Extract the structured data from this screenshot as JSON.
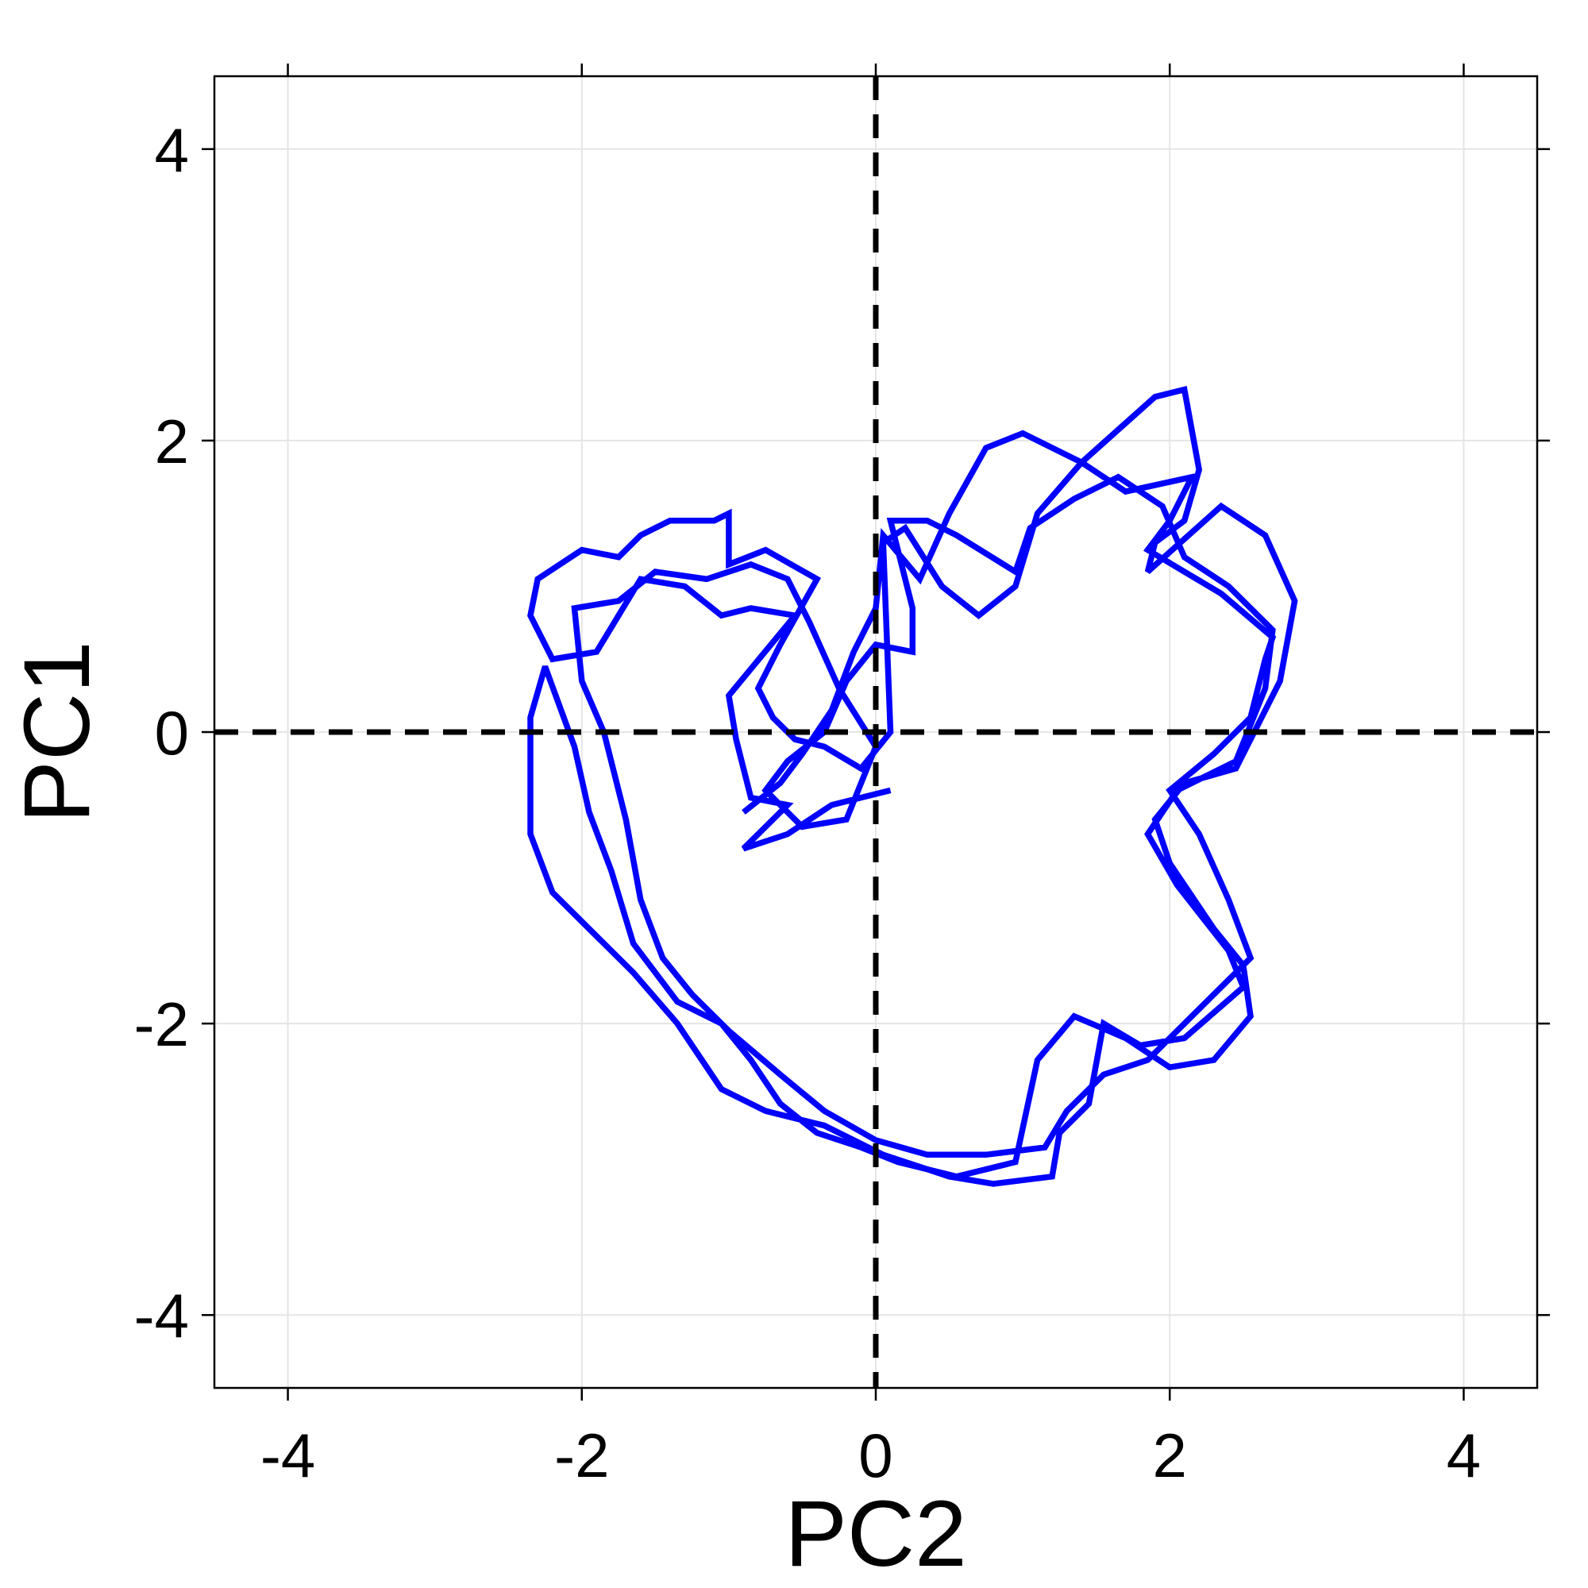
{
  "chart_data": {
    "type": "line",
    "title": "",
    "xlabel": "PC2",
    "ylabel": "PC1",
    "xlim": [
      -4.5,
      4.5
    ],
    "ylim": [
      -4.5,
      4.5
    ],
    "x_ticks": [
      -4,
      -2,
      0,
      2,
      4
    ],
    "y_ticks": [
      -4,
      -2,
      0,
      2,
      4
    ],
    "x_tick_labels": [
      "-4",
      "-2",
      "0",
      "2",
      "4"
    ],
    "y_tick_labels": [
      "-4",
      "-2",
      "0",
      "2",
      "4"
    ],
    "grid": true,
    "reference_lines": [
      {
        "orientation": "horizontal",
        "value": 0,
        "style": "dashed",
        "color": "#000000"
      },
      {
        "orientation": "vertical",
        "value": 0,
        "style": "dashed",
        "color": "#000000"
      }
    ],
    "colors": {
      "series": "#0000ff",
      "grid": "#e5e5e5",
      "axis": "#000000"
    },
    "series": [
      {
        "color": "#0000ff",
        "points": [
          [
            0.1,
            -0.4
          ],
          [
            -0.3,
            -0.5
          ],
          [
            -0.6,
            -0.7
          ],
          [
            -0.9,
            -0.8
          ],
          [
            -0.6,
            -0.5
          ],
          [
            -0.85,
            -0.45
          ],
          [
            -0.95,
            -0.05
          ],
          [
            -1.0,
            0.25
          ],
          [
            -0.55,
            0.8
          ],
          [
            -0.85,
            0.85
          ],
          [
            -1.05,
            0.8
          ],
          [
            -1.3,
            1.0
          ],
          [
            -1.6,
            1.05
          ],
          [
            -1.9,
            0.55
          ],
          [
            -2.2,
            0.5
          ],
          [
            -2.35,
            0.8
          ],
          [
            -2.3,
            1.05
          ],
          [
            -2.0,
            1.25
          ],
          [
            -1.75,
            1.2
          ],
          [
            -1.6,
            1.35
          ],
          [
            -1.4,
            1.45
          ],
          [
            -1.1,
            1.45
          ],
          [
            -1.0,
            1.5
          ],
          [
            -1.0,
            1.15
          ],
          [
            -0.75,
            1.25
          ],
          [
            -0.4,
            1.05
          ],
          [
            -0.65,
            0.6
          ],
          [
            -0.8,
            0.3
          ],
          [
            -0.7,
            0.1
          ],
          [
            -0.55,
            -0.05
          ],
          [
            -0.35,
            -0.1
          ],
          [
            -0.1,
            -0.25
          ],
          [
            0.1,
            0.0
          ],
          [
            0.05,
            1.3
          ],
          [
            0.2,
            1.4
          ],
          [
            0.45,
            1.0
          ],
          [
            0.7,
            0.8
          ],
          [
            0.95,
            1.0
          ],
          [
            1.1,
            1.5
          ],
          [
            1.4,
            1.85
          ],
          [
            1.9,
            2.3
          ],
          [
            2.1,
            2.35
          ],
          [
            2.2,
            1.8
          ],
          [
            2.1,
            1.45
          ],
          [
            1.9,
            1.3
          ],
          [
            1.85,
            1.1
          ],
          [
            2.35,
            1.55
          ],
          [
            2.65,
            1.35
          ],
          [
            2.85,
            0.9
          ],
          [
            2.75,
            0.35
          ],
          [
            2.6,
            0.05
          ],
          [
            2.45,
            -0.25
          ],
          [
            2.1,
            -0.35
          ],
          [
            1.9,
            -0.6
          ],
          [
            2.0,
            -0.9
          ],
          [
            2.3,
            -1.35
          ],
          [
            2.5,
            -1.6
          ],
          [
            2.55,
            -1.95
          ],
          [
            2.3,
            -2.25
          ],
          [
            2.0,
            -2.3
          ],
          [
            1.7,
            -2.1
          ],
          [
            1.35,
            -1.95
          ],
          [
            1.1,
            -2.25
          ],
          [
            0.95,
            -2.95
          ],
          [
            0.55,
            -3.05
          ],
          [
            0.15,
            -2.95
          ],
          [
            -0.1,
            -2.85
          ],
          [
            -0.4,
            -2.75
          ],
          [
            -0.65,
            -2.55
          ],
          [
            -0.85,
            -2.25
          ],
          [
            -1.05,
            -2.0
          ],
          [
            -1.35,
            -1.85
          ],
          [
            -1.65,
            -1.45
          ],
          [
            -1.8,
            -0.95
          ],
          [
            -1.95,
            -0.55
          ],
          [
            -2.05,
            -0.1
          ],
          [
            -2.25,
            0.45
          ],
          [
            -2.35,
            0.1
          ],
          [
            -2.35,
            -0.7
          ],
          [
            -2.2,
            -1.1
          ],
          [
            -1.95,
            -1.35
          ],
          [
            -1.65,
            -1.65
          ],
          [
            -1.35,
            -2.0
          ],
          [
            -1.05,
            -2.45
          ],
          [
            -0.75,
            -2.6
          ],
          [
            -0.35,
            -2.7
          ],
          [
            0.05,
            -2.9
          ],
          [
            0.5,
            -3.05
          ],
          [
            0.8,
            -3.1
          ],
          [
            1.2,
            -3.05
          ],
          [
            1.25,
            -2.75
          ],
          [
            1.45,
            -2.55
          ],
          [
            1.55,
            -2.0
          ],
          [
            1.8,
            -2.15
          ],
          [
            2.1,
            -2.1
          ],
          [
            2.5,
            -1.75
          ],
          [
            2.4,
            -1.5
          ],
          [
            2.05,
            -1.05
          ],
          [
            1.85,
            -0.7
          ],
          [
            2.05,
            -0.4
          ],
          [
            2.45,
            -0.2
          ],
          [
            2.65,
            0.3
          ],
          [
            2.7,
            0.7
          ],
          [
            2.4,
            1.0
          ],
          [
            2.1,
            1.2
          ],
          [
            1.95,
            1.55
          ],
          [
            1.65,
            1.75
          ],
          [
            1.35,
            1.6
          ],
          [
            1.05,
            1.4
          ],
          [
            0.95,
            1.1
          ],
          [
            0.55,
            1.35
          ],
          [
            0.35,
            1.45
          ],
          [
            0.1,
            1.45
          ],
          [
            0.25,
            0.85
          ],
          [
            0.25,
            0.55
          ],
          [
            0.0,
            0.6
          ],
          [
            -0.2,
            0.35
          ],
          [
            -0.35,
            0.0
          ],
          [
            -0.6,
            -0.2
          ],
          [
            -0.75,
            -0.4
          ],
          [
            -0.5,
            -0.65
          ],
          [
            -0.2,
            -0.6
          ],
          [
            0.0,
            -0.1
          ],
          [
            -0.25,
            0.3
          ],
          [
            -0.45,
            0.75
          ],
          [
            -0.6,
            1.05
          ],
          [
            -0.85,
            1.15
          ],
          [
            -1.15,
            1.05
          ],
          [
            -1.5,
            1.1
          ],
          [
            -1.75,
            0.9
          ],
          [
            -2.05,
            0.85
          ],
          [
            -2.0,
            0.35
          ],
          [
            -1.85,
            0.0
          ],
          [
            -1.7,
            -0.6
          ],
          [
            -1.6,
            -1.15
          ],
          [
            -1.45,
            -1.55
          ],
          [
            -1.25,
            -1.8
          ],
          [
            -1.0,
            -2.05
          ],
          [
            -0.65,
            -2.35
          ],
          [
            -0.35,
            -2.6
          ],
          [
            0.0,
            -2.8
          ],
          [
            0.35,
            -2.9
          ],
          [
            0.75,
            -2.9
          ],
          [
            1.15,
            -2.85
          ],
          [
            1.3,
            -2.6
          ],
          [
            1.55,
            -2.35
          ],
          [
            1.85,
            -2.25
          ],
          [
            2.25,
            -1.85
          ],
          [
            2.55,
            -1.55
          ],
          [
            2.4,
            -1.15
          ],
          [
            2.2,
            -0.7
          ],
          [
            2.0,
            -0.4
          ],
          [
            2.3,
            -0.15
          ],
          [
            2.55,
            0.1
          ],
          [
            2.65,
            0.5
          ],
          [
            2.7,
            0.65
          ],
          [
            2.35,
            0.95
          ],
          [
            1.85,
            1.25
          ],
          [
            2.0,
            1.45
          ],
          [
            2.15,
            1.75
          ],
          [
            1.7,
            1.65
          ],
          [
            1.4,
            1.85
          ],
          [
            1.0,
            2.05
          ],
          [
            0.75,
            1.95
          ],
          [
            0.5,
            1.5
          ],
          [
            0.3,
            1.05
          ],
          [
            0.05,
            1.35
          ],
          [
            0.0,
            0.85
          ],
          [
            -0.15,
            0.55
          ],
          [
            -0.3,
            0.15
          ],
          [
            -0.5,
            -0.15
          ],
          [
            -0.65,
            -0.35
          ],
          [
            -0.9,
            -0.55
          ]
        ]
      }
    ]
  }
}
